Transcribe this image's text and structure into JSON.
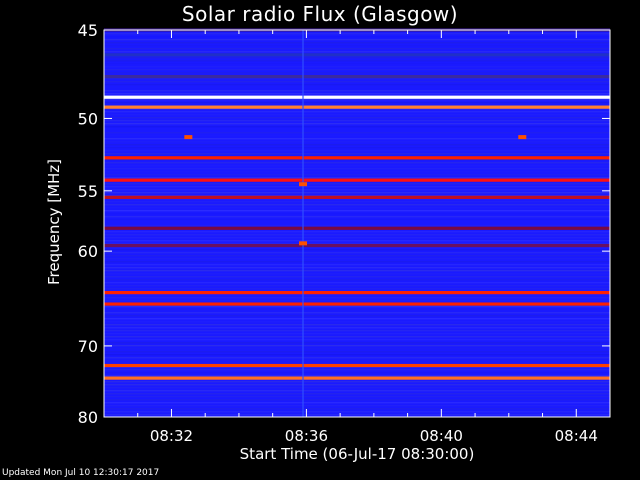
{
  "chart_data": {
    "type": "heatmap",
    "title": "Solar radio Flux (Glasgow)",
    "ylabel": "Frequency [MHz]",
    "xlabel": "Start Time (06-Jul-17 08:30:00)",
    "y_ticks": [
      45,
      50,
      55,
      60,
      70,
      80
    ],
    "y_tick_labels": [
      "45",
      "50",
      "55",
      "60",
      "70",
      "80"
    ],
    "x_ticks": [
      "08:32",
      "08:36",
      "08:40",
      "08:44"
    ],
    "x_tick_minutes": [
      2,
      6,
      10,
      14
    ],
    "x_range_minutes": [
      0,
      15
    ],
    "y_range_mhz": [
      45,
      80
    ],
    "y_scale": "reciprocal",
    "background_color": "#1a1aff",
    "bands": [
      {
        "mhz": 45.0,
        "color": "#3a1a8c"
      },
      {
        "mhz": 46.3,
        "color": "#2030c8"
      },
      {
        "mhz": 47.5,
        "color": "#3a2aa0"
      },
      {
        "mhz": 48.7,
        "color": "#ffffff"
      },
      {
        "mhz": 49.3,
        "color": "#ff8030"
      },
      {
        "mhz": 52.6,
        "color": "#ff2000"
      },
      {
        "mhz": 54.2,
        "color": "#ff1010"
      },
      {
        "mhz": 55.5,
        "color": "#c01020"
      },
      {
        "mhz": 58.0,
        "color": "#7a0a40"
      },
      {
        "mhz": 59.5,
        "color": "#6a1060"
      },
      {
        "mhz": 64.0,
        "color": "#ff2000"
      },
      {
        "mhz": 65.2,
        "color": "#ff2000"
      },
      {
        "mhz": 72.5,
        "color": "#ff4000"
      },
      {
        "mhz": 74.2,
        "color": "#ff7020"
      }
    ],
    "spots": [
      {
        "minute": 2.5,
        "mhz": 51.2
      },
      {
        "minute": 12.4,
        "mhz": 51.2
      },
      {
        "minute": 5.9,
        "mhz": 54.5
      },
      {
        "minute": 5.9,
        "mhz": 59.3
      }
    ]
  },
  "footer": {
    "updated": "Updated Mon Jul 10 12:30:17 2017"
  }
}
